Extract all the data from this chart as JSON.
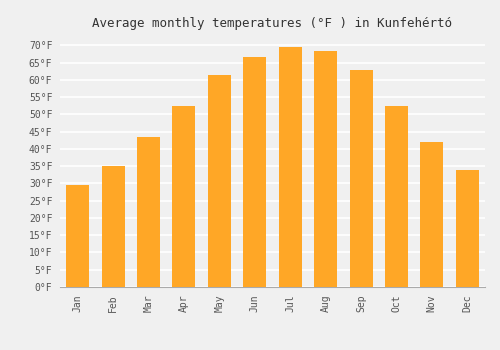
{
  "title": "Average monthly temperatures (°F ) in Kunfehértó",
  "months": [
    "Jan",
    "Feb",
    "Mar",
    "Apr",
    "May",
    "Jun",
    "Jul",
    "Aug",
    "Sep",
    "Oct",
    "Nov",
    "Dec"
  ],
  "values": [
    29.5,
    35.0,
    43.5,
    52.5,
    61.5,
    66.5,
    69.5,
    68.5,
    63.0,
    52.5,
    42.0,
    34.0
  ],
  "bar_color": "#FFA726",
  "ylim": [
    0,
    73
  ],
  "yticks": [
    0,
    5,
    10,
    15,
    20,
    25,
    30,
    35,
    40,
    45,
    50,
    55,
    60,
    65,
    70
  ],
  "background_color": "#F0F0F0",
  "grid_color": "#FFFFFF",
  "title_fontsize": 9,
  "tick_fontsize": 7,
  "font_family": "monospace"
}
